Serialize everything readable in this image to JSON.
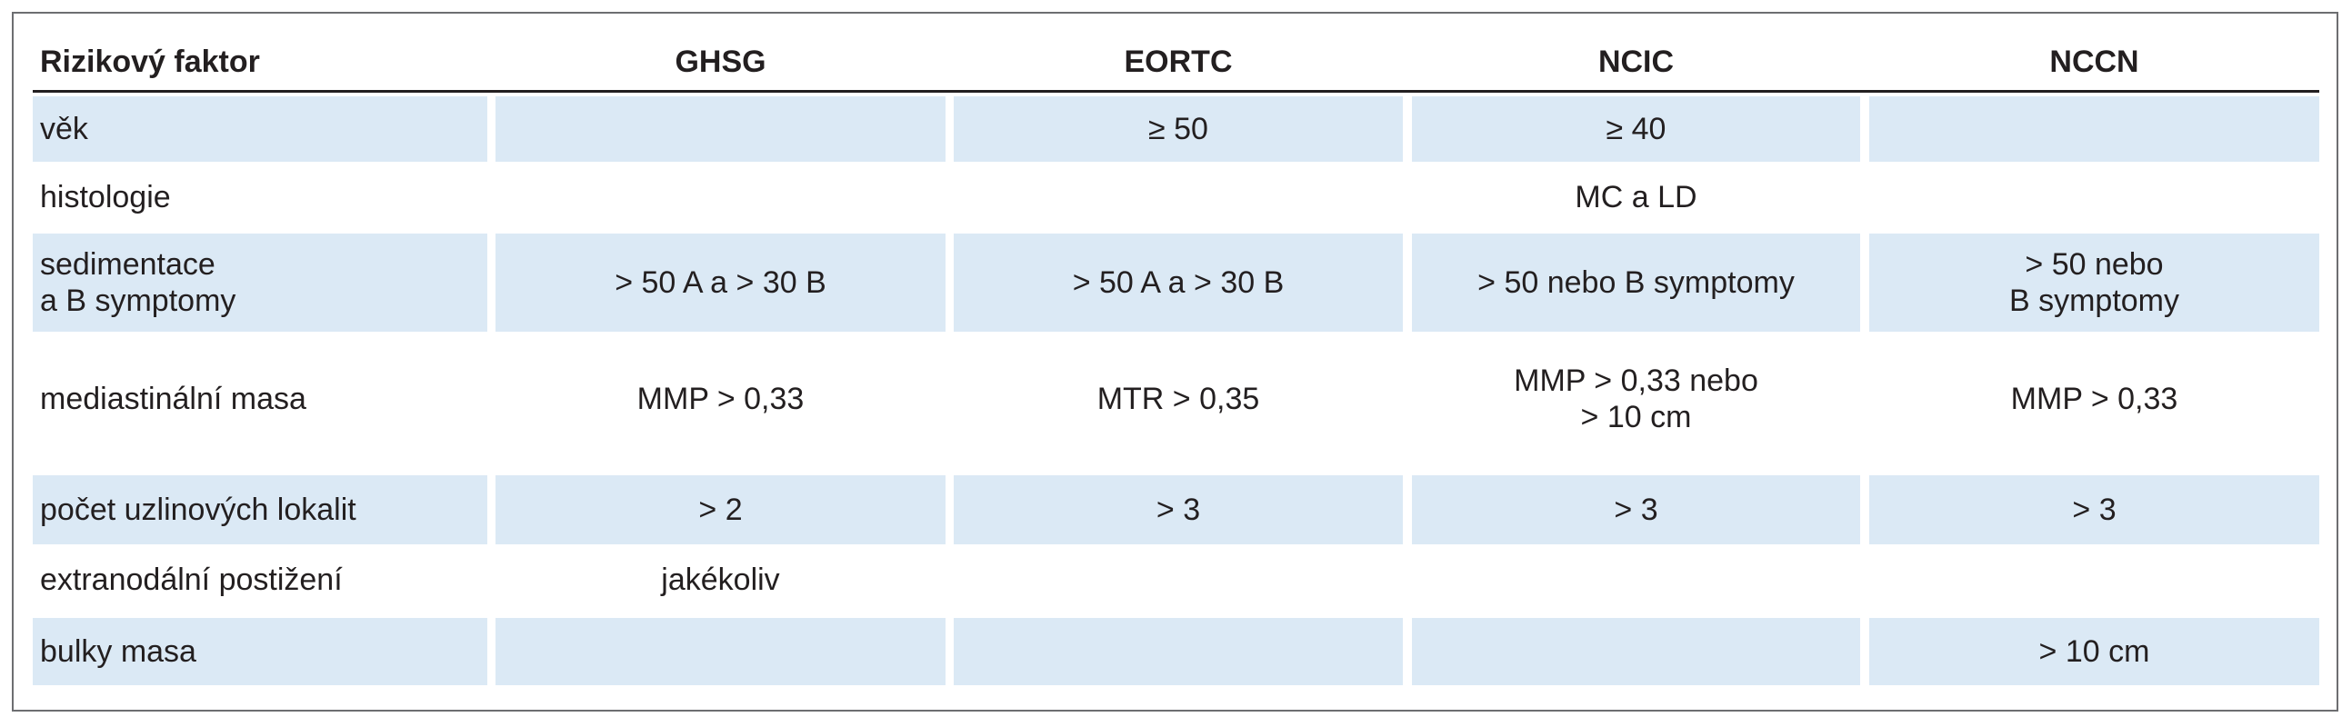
{
  "table": {
    "header": [
      "Rizikový faktor",
      "GHSG",
      "EORTC",
      "NCIC",
      "NCCN"
    ],
    "rows": [
      [
        "věk",
        null,
        "≥ 50",
        "≥ 40",
        null
      ],
      [
        "histologie",
        null,
        null,
        "MC a LD",
        null
      ],
      [
        "sedimentace\na B symptomy",
        "> 50 A a > 30 B",
        "> 50 A a > 30 B",
        "> 50 nebo B symptomy",
        "> 50 nebo\nB symptomy"
      ],
      [
        "mediastinální masa",
        "MMP > 0,33",
        "MTR > 0,35",
        "MMP > 0,33 nebo\n> 10 cm",
        "MMP > 0,33"
      ],
      [
        "počet uzlinových lokalit",
        "> 2",
        "> 3",
        "> 3",
        "> 3"
      ],
      [
        "extranodální postižení",
        "jakékoliv",
        null,
        null,
        null
      ],
      [
        "bulky masa",
        null,
        null,
        null,
        "> 10 cm"
      ]
    ]
  }
}
